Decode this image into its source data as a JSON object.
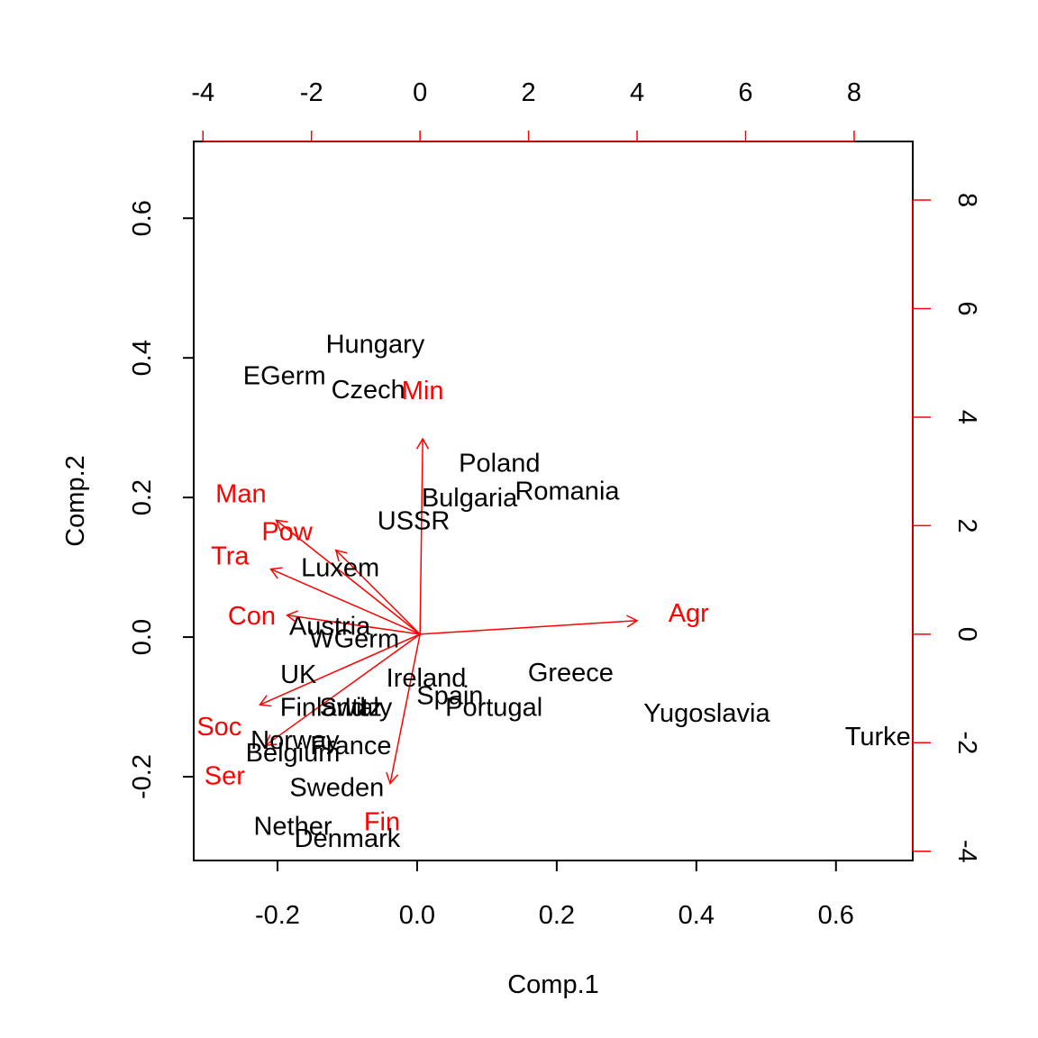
{
  "chart_data": {
    "type": "scatter",
    "subtype": "biplot",
    "xlabel": "Comp.1",
    "ylabel": "Comp.2",
    "xlim": [
      -0.32,
      0.71
    ],
    "ylim": [
      -0.32,
      0.71
    ],
    "secondary_xlim": [
      -4.17,
      9.08
    ],
    "secondary_ylim": [
      -4.17,
      9.08
    ],
    "grid": false,
    "ticks": {
      "bottom": {
        "values": [
          -0.2,
          0.0,
          0.2,
          0.4,
          0.6
        ],
        "labels": [
          "-0.2",
          "0.0",
          "0.2",
          "0.4",
          "0.6"
        ]
      },
      "left": {
        "values": [
          -0.2,
          0.0,
          0.2,
          0.4,
          0.6
        ],
        "labels": [
          "-0.2",
          "0.0",
          "0.2",
          "0.4",
          "0.6"
        ]
      },
      "top": {
        "values": [
          -4,
          -2,
          0,
          2,
          4,
          6,
          8
        ],
        "labels": [
          "-4",
          "-2",
          "0",
          "2",
          "4",
          "6",
          "8"
        ]
      },
      "right": {
        "values": [
          -4,
          -2,
          0,
          2,
          4,
          6,
          8
        ],
        "labels": [
          "-4",
          "-2",
          "0",
          "2",
          "4",
          "6",
          "8"
        ]
      }
    },
    "colors": {
      "points": "#000000",
      "loadings": "#ff0000",
      "axis": "#000000"
    },
    "points": [
      {
        "label": "Hungary",
        "x": -0.06,
        "y": 0.42
      },
      {
        "label": "EGerm",
        "x": -0.19,
        "y": 0.375
      },
      {
        "label": "Czech",
        "x": -0.07,
        "y": 0.355
      },
      {
        "label": "Poland",
        "x": 0.118,
        "y": 0.25
      },
      {
        "label": "Romania",
        "x": 0.215,
        "y": 0.21
      },
      {
        "label": "Bulgaria",
        "x": 0.075,
        "y": 0.2
      },
      {
        "label": "USSR",
        "x": -0.005,
        "y": 0.167
      },
      {
        "label": "Luxem",
        "x": -0.11,
        "y": 0.1
      },
      {
        "label": "Austria",
        "x": -0.125,
        "y": 0.016
      },
      {
        "label": "WGerm",
        "x": -0.09,
        "y": -0.002
      },
      {
        "label": "UK",
        "x": -0.17,
        "y": -0.053
      },
      {
        "label": "Ireland",
        "x": 0.013,
        "y": -0.058
      },
      {
        "label": "Greece",
        "x": 0.22,
        "y": -0.05
      },
      {
        "label": "Spain",
        "x": 0.047,
        "y": -0.083
      },
      {
        "label": "Portugal",
        "x": 0.11,
        "y": -0.1
      },
      {
        "label": "Finland",
        "x": -0.135,
        "y": -0.1
      },
      {
        "label": "Switz",
        "x": -0.095,
        "y": -0.1
      },
      {
        "label": "Italy",
        "x": -0.07,
        "y": -0.1
      },
      {
        "label": "Yugoslavia",
        "x": 0.415,
        "y": -0.108
      },
      {
        "label": "Turke",
        "x": 0.66,
        "y": -0.142
      },
      {
        "label": "Norway",
        "x": -0.175,
        "y": -0.147
      },
      {
        "label": "France",
        "x": -0.095,
        "y": -0.155
      },
      {
        "label": "Belgium",
        "x": -0.178,
        "y": -0.165
      },
      {
        "label": "Sweden",
        "x": -0.115,
        "y": -0.215
      },
      {
        "label": "Nether",
        "x": -0.178,
        "y": -0.27
      },
      {
        "label": "Denmark",
        "x": -0.1,
        "y": -0.288
      }
    ],
    "loadings": [
      {
        "label": "Agr",
        "x": 4.0,
        "y": 0.25,
        "label_x": 4.95,
        "label_y": 0.4
      },
      {
        "label": "Min",
        "x": 0.05,
        "y": 3.6,
        "label_x": 0.05,
        "label_y": 4.5
      },
      {
        "label": "Man",
        "x": -2.65,
        "y": 2.1,
        "label_x": -3.3,
        "label_y": 2.6
      },
      {
        "label": "Pow",
        "x": -1.55,
        "y": 1.55,
        "label_x": -2.45,
        "label_y": 1.9
      },
      {
        "label": "Con",
        "x": -2.45,
        "y": 0.35,
        "label_x": -3.1,
        "label_y": 0.35
      },
      {
        "label": "Tra",
        "x": -2.75,
        "y": 1.2,
        "label_x": -3.5,
        "label_y": 1.45
      },
      {
        "label": "Soc",
        "x": -2.95,
        "y": -1.3,
        "label_x": -3.7,
        "label_y": -1.7
      },
      {
        "label": "Ser",
        "x": -2.85,
        "y": -2.05,
        "label_x": -3.6,
        "label_y": -2.6
      },
      {
        "label": "Fin",
        "x": -0.55,
        "y": -2.75,
        "label_x": -0.7,
        "label_y": -3.45
      }
    ]
  }
}
